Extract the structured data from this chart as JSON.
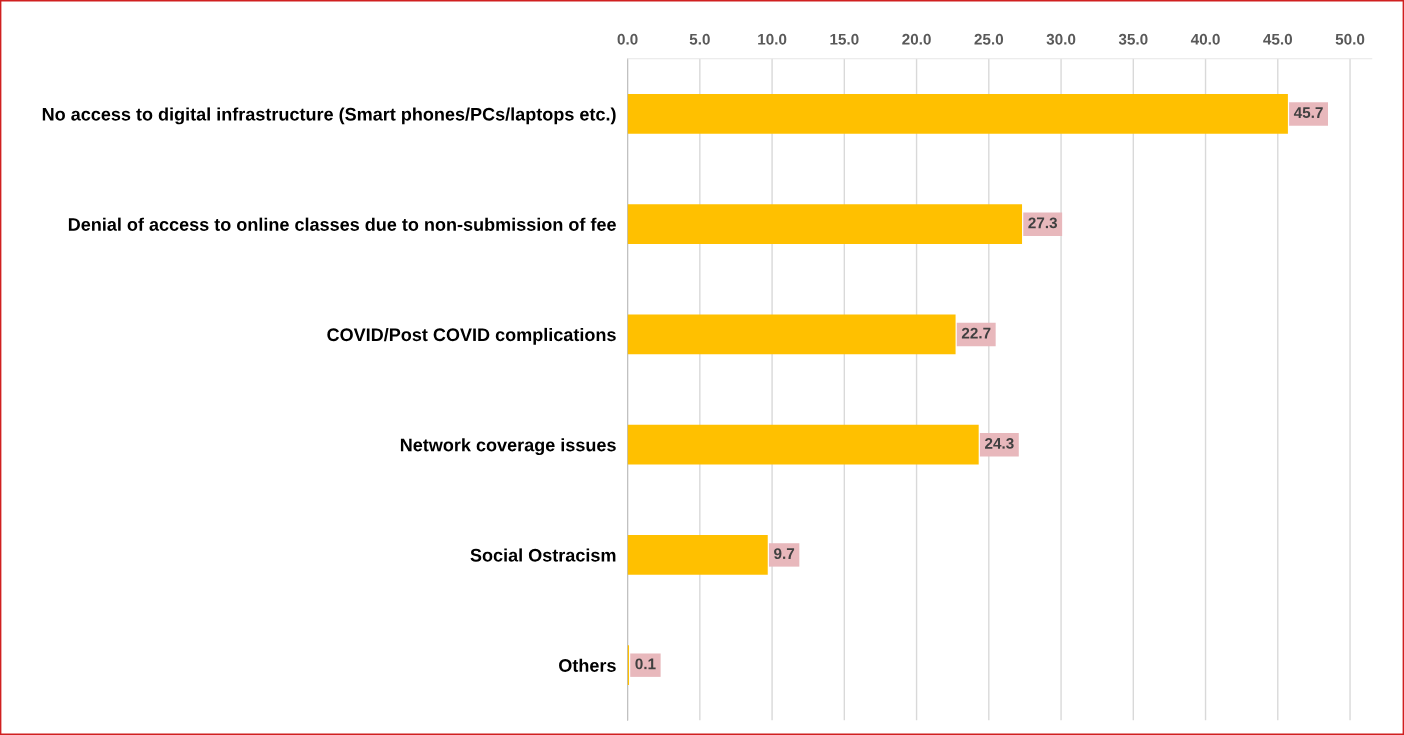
{
  "chart_data": {
    "type": "bar",
    "orientation": "horizontal",
    "categories": [
      "No access to digital infrastructure (Smart phones/PCs/laptops etc.)",
      "Denial of access to online classes due to non-submission of fee",
      "COVID/Post COVID complications",
      "Network coverage issues",
      "Social Ostracism",
      "Others"
    ],
    "values": [
      45.7,
      27.3,
      22.7,
      24.3,
      9.7,
      0.1
    ],
    "color": "#ffc000",
    "xlim": [
      0,
      51.5
    ],
    "xticks": [
      {
        "value": 0,
        "label": "0.0"
      },
      {
        "value": 5,
        "label": "5.0"
      },
      {
        "value": 10,
        "label": "10.0"
      },
      {
        "value": 15,
        "label": "15.0"
      },
      {
        "value": 20,
        "label": "20.0"
      },
      {
        "value": 25,
        "label": "25.0"
      },
      {
        "value": 30,
        "label": "30.0"
      },
      {
        "value": 35,
        "label": "35.0"
      },
      {
        "value": 40,
        "label": "40.0"
      },
      {
        "value": 45,
        "label": "45.0"
      },
      {
        "value": 50,
        "label": "50.0"
      }
    ],
    "grid": "x",
    "data_labels": true
  }
}
